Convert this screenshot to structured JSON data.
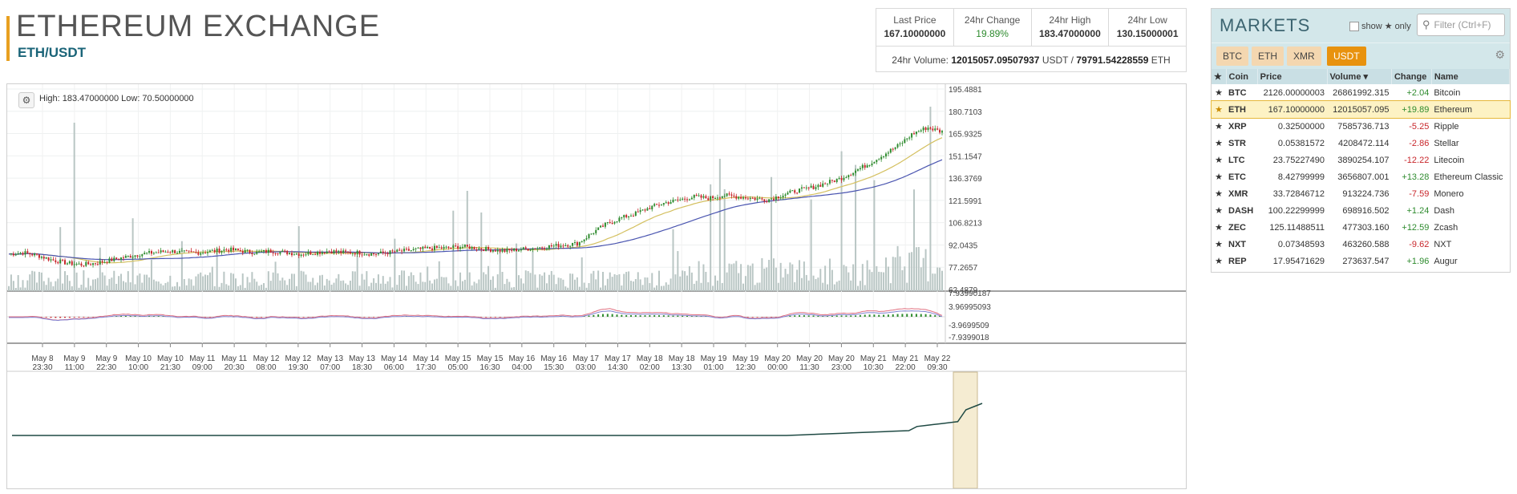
{
  "header": {
    "title": "ETHEREUM EXCHANGE",
    "pair": "ETH/USDT"
  },
  "stats": {
    "last_price_label": "Last Price",
    "last_price": "167.10000000",
    "change_label": "24hr Change",
    "change": "19.89%",
    "high_label": "24hr High",
    "high": "183.47000000",
    "low_label": "24hr Low",
    "low": "130.15000001",
    "volume_label": "24hr Volume:",
    "volume_usdt": "12015057.09507937",
    "volume_usdt_unit": "USDT /",
    "volume_eth": "79791.54228559",
    "volume_eth_unit": "ETH"
  },
  "chart": {
    "high_low_text": "High: 183.47000000   Low: 70.50000000",
    "price_axis": [
      "195.4881",
      "180.7103",
      "165.9325",
      "151.1547",
      "136.3769",
      "121.5991",
      "106.8213",
      "92.0435",
      "77.2657",
      "62.4879"
    ],
    "macd_axis": [
      "7.93990187",
      "3.96995093",
      "-3.9699509",
      "-7.9399018"
    ],
    "time_axis": [
      {
        "d": "May 8",
        "t": "23:30"
      },
      {
        "d": "May 9",
        "t": "11:00"
      },
      {
        "d": "May 9",
        "t": "22:30"
      },
      {
        "d": "May 10",
        "t": "10:00"
      },
      {
        "d": "May 10",
        "t": "21:30"
      },
      {
        "d": "May 11",
        "t": "09:00"
      },
      {
        "d": "May 11",
        "t": "20:30"
      },
      {
        "d": "May 12",
        "t": "08:00"
      },
      {
        "d": "May 12",
        "t": "19:30"
      },
      {
        "d": "May 13",
        "t": "07:00"
      },
      {
        "d": "May 13",
        "t": "18:30"
      },
      {
        "d": "May 14",
        "t": "06:00"
      },
      {
        "d": "May 14",
        "t": "17:30"
      },
      {
        "d": "May 15",
        "t": "05:00"
      },
      {
        "d": "May 15",
        "t": "16:30"
      },
      {
        "d": "May 16",
        "t": "04:00"
      },
      {
        "d": "May 16",
        "t": "15:30"
      },
      {
        "d": "May 17",
        "t": "03:00"
      },
      {
        "d": "May 17",
        "t": "14:30"
      },
      {
        "d": "May 18",
        "t": "02:00"
      },
      {
        "d": "May 18",
        "t": "13:30"
      },
      {
        "d": "May 19",
        "t": "01:00"
      },
      {
        "d": "May 19",
        "t": "12:30"
      },
      {
        "d": "May 20",
        "t": "00:00"
      },
      {
        "d": "May 20",
        "t": "11:30"
      },
      {
        "d": "May 20",
        "t": "23:00"
      },
      {
        "d": "May 21",
        "t": "10:30"
      },
      {
        "d": "May 21",
        "t": "22:00"
      },
      {
        "d": "May 22",
        "t": "09:30"
      }
    ],
    "price_path": [
      86,
      87,
      85,
      82,
      80,
      79,
      80,
      82,
      84,
      86,
      87,
      88,
      87,
      87,
      88,
      89,
      88,
      87,
      88,
      87,
      86,
      87,
      88,
      87,
      87,
      86,
      87,
      88,
      89,
      90,
      90,
      91,
      90,
      89,
      88,
      89,
      90,
      91,
      92,
      93,
      100,
      106,
      110,
      113,
      117,
      120,
      122,
      124,
      123,
      125,
      124,
      123,
      122,
      125,
      128,
      130,
      133,
      136,
      141,
      146,
      152,
      158,
      166,
      170,
      167
    ],
    "colors": {
      "up": "#2e8b2e",
      "down": "#c8262b",
      "ma_fast": "#d4c060",
      "ma_slow": "#4a55b0",
      "volume": "#b9c6c4",
      "macd": "#e07080",
      "signal": "#8080d0"
    }
  },
  "markets": {
    "title": "MARKETS",
    "show_label": "show",
    "only_label": "only",
    "filter_placeholder": "Filter (Ctrl+F)",
    "tabs": [
      "BTC",
      "ETH",
      "XMR",
      "USDT"
    ],
    "active_tab": "USDT",
    "columns": {
      "coin": "Coin",
      "price": "Price",
      "volume": "Volume",
      "change": "Change",
      "name": "Name"
    },
    "rows": [
      {
        "coin": "BTC",
        "price": "2126.00000003",
        "volume": "26861992.315",
        "change": "+2.04",
        "name": "Bitcoin",
        "dir": "up"
      },
      {
        "coin": "ETH",
        "price": "167.10000000",
        "volume": "12015057.095",
        "change": "+19.89",
        "name": "Ethereum",
        "dir": "up",
        "selected": true
      },
      {
        "coin": "XRP",
        "price": "0.32500000",
        "volume": "7585736.713",
        "change": "-5.25",
        "name": "Ripple",
        "dir": "dn"
      },
      {
        "coin": "STR",
        "price": "0.05381572",
        "volume": "4208472.114",
        "change": "-2.86",
        "name": "Stellar",
        "dir": "dn"
      },
      {
        "coin": "LTC",
        "price": "23.75227490",
        "volume": "3890254.107",
        "change": "-12.22",
        "name": "Litecoin",
        "dir": "dn"
      },
      {
        "coin": "ETC",
        "price": "8.42799999",
        "volume": "3656807.001",
        "change": "+13.28",
        "name": "Ethereum Classic",
        "dir": "up"
      },
      {
        "coin": "XMR",
        "price": "33.72846712",
        "volume": "913224.736",
        "change": "-7.59",
        "name": "Monero",
        "dir": "dn"
      },
      {
        "coin": "DASH",
        "price": "100.22299999",
        "volume": "698916.502",
        "change": "+1.24",
        "name": "Dash",
        "dir": "up"
      },
      {
        "coin": "ZEC",
        "price": "125.11488511",
        "volume": "477303.160",
        "change": "+12.59",
        "name": "Zcash",
        "dir": "up"
      },
      {
        "coin": "NXT",
        "price": "0.07348593",
        "volume": "463260.588",
        "change": "-9.62",
        "name": "NXT",
        "dir": "dn"
      },
      {
        "coin": "REP",
        "price": "17.95471629",
        "volume": "273637.547",
        "change": "+1.96",
        "name": "Augur",
        "dir": "up"
      }
    ]
  }
}
